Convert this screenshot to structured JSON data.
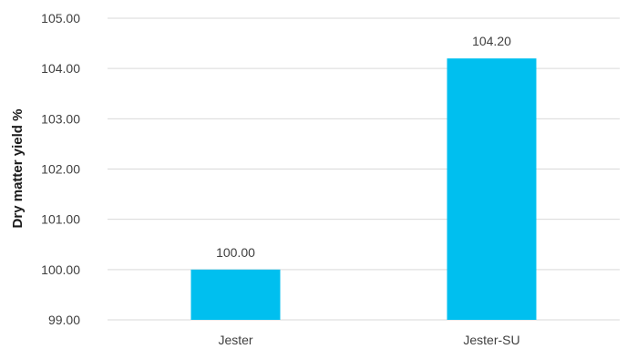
{
  "chart_data": {
    "type": "bar",
    "title": "",
    "xlabel": "",
    "ylabel": "Dry matter yield %",
    "categories": [
      "Jester",
      "Jester-SU"
    ],
    "values": [
      100.0,
      104.2
    ],
    "value_labels": [
      "100.00",
      "104.20"
    ],
    "ylim": [
      99.0,
      105.0
    ],
    "yticks": [
      99.0,
      100.0,
      101.0,
      102.0,
      103.0,
      104.0,
      105.0
    ],
    "ytick_labels": [
      "99.00",
      "100.00",
      "101.00",
      "102.00",
      "103.00",
      "104.00",
      "105.00"
    ],
    "grid": true,
    "legend": "none",
    "bar_color": "#00BFEF",
    "grid_color": "#D9D9D9"
  }
}
